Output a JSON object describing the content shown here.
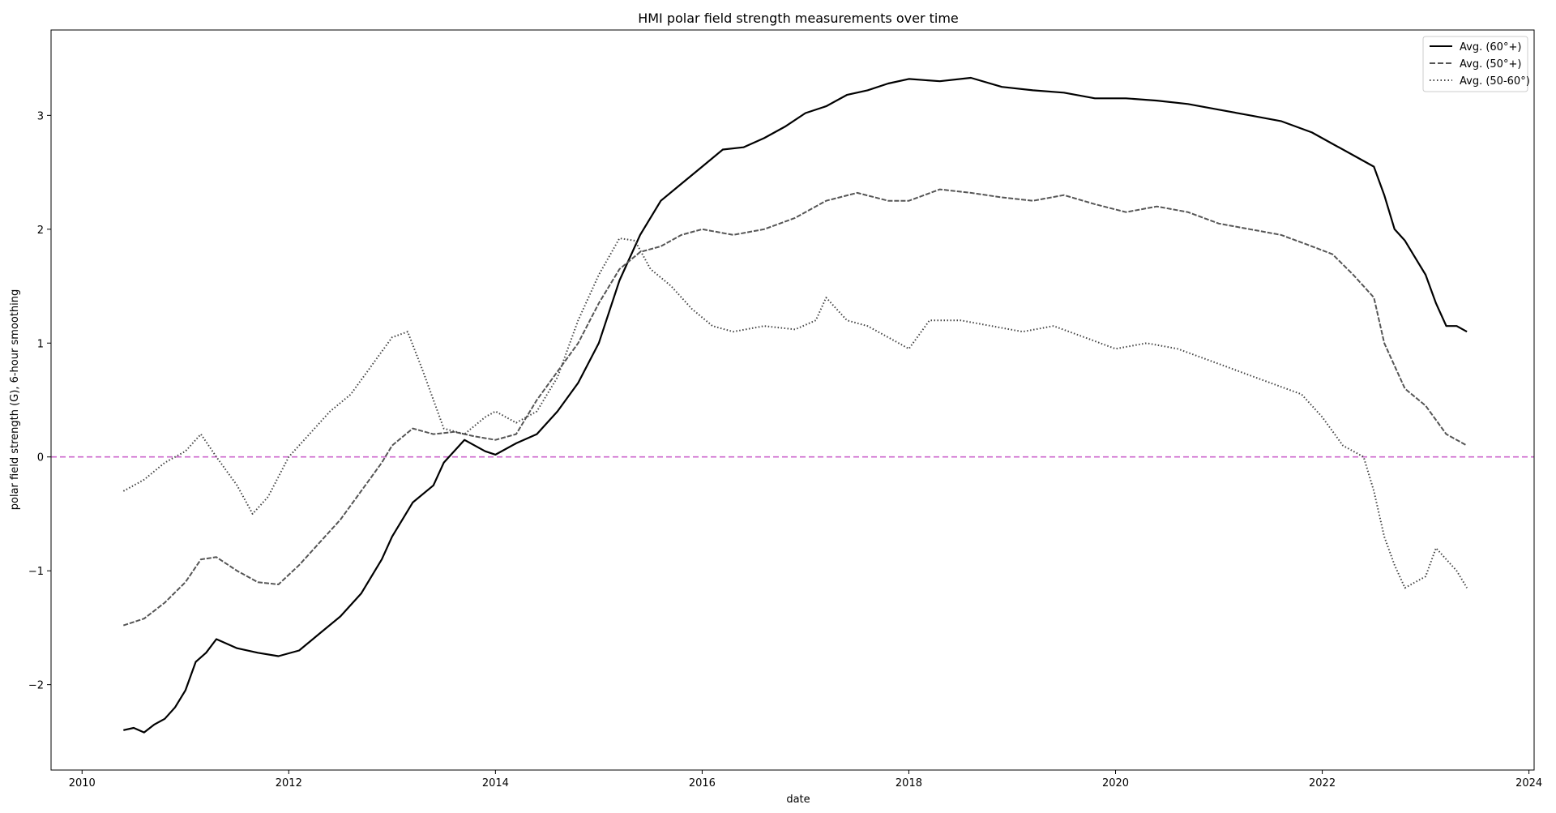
{
  "chart_data": {
    "type": "line",
    "title": "HMI polar field strength measurements over time",
    "xlabel": "date",
    "ylabel": "polar field strength (G), 6-hour smoothing",
    "xlim": [
      2009.7,
      2024.05
    ],
    "ylim": [
      -2.75,
      3.75
    ],
    "xticks": [
      2010,
      2012,
      2014,
      2016,
      2018,
      2020,
      2022,
      2024
    ],
    "xtick_labels": [
      "2010",
      "2012",
      "2014",
      "2016",
      "2018",
      "2020",
      "2022",
      "2024"
    ],
    "yticks": [
      -2,
      -1,
      0,
      1,
      2,
      3
    ],
    "ytick_labels": [
      "−2",
      "−1",
      "0",
      "1",
      "2",
      "3"
    ],
    "grid": false,
    "legend_position": "top-right",
    "reference_line": {
      "y": 0,
      "style": "dashed",
      "color": "#cc66cc"
    },
    "series": [
      {
        "name": "Avg. (60°+)",
        "style": "solid",
        "color": "#000000",
        "x": [
          2010.4,
          2010.5,
          2010.6,
          2010.7,
          2010.8,
          2010.9,
          2011.0,
          2011.1,
          2011.2,
          2011.3,
          2011.5,
          2011.7,
          2011.9,
          2012.1,
          2012.3,
          2012.5,
          2012.7,
          2012.9,
          2013.0,
          2013.2,
          2013.4,
          2013.5,
          2013.7,
          2013.9,
          2014.0,
          2014.2,
          2014.4,
          2014.6,
          2014.8,
          2015.0,
          2015.2,
          2015.4,
          2015.6,
          2015.8,
          2016.0,
          2016.2,
          2016.4,
          2016.6,
          2016.8,
          2017.0,
          2017.2,
          2017.4,
          2017.6,
          2017.8,
          2018.0,
          2018.3,
          2018.6,
          2018.9,
          2019.2,
          2019.5,
          2019.8,
          2020.1,
          2020.4,
          2020.7,
          2021.0,
          2021.3,
          2021.6,
          2021.9,
          2022.1,
          2022.3,
          2022.5,
          2022.6,
          2022.7,
          2022.8,
          2022.9,
          2023.0,
          2023.1,
          2023.2,
          2023.3,
          2023.4
        ],
        "y": [
          -2.4,
          -2.38,
          -2.42,
          -2.35,
          -2.3,
          -2.2,
          -2.05,
          -1.8,
          -1.72,
          -1.6,
          -1.68,
          -1.72,
          -1.75,
          -1.7,
          -1.55,
          -1.4,
          -1.2,
          -0.9,
          -0.7,
          -0.4,
          -0.25,
          -0.05,
          0.15,
          0.05,
          0.02,
          0.12,
          0.2,
          0.4,
          0.65,
          1.0,
          1.55,
          1.95,
          2.25,
          2.4,
          2.55,
          2.7,
          2.72,
          2.8,
          2.9,
          3.02,
          3.08,
          3.18,
          3.22,
          3.28,
          3.32,
          3.3,
          3.33,
          3.25,
          3.22,
          3.2,
          3.15,
          3.15,
          3.13,
          3.1,
          3.05,
          3.0,
          2.95,
          2.85,
          2.75,
          2.65,
          2.55,
          2.3,
          2.0,
          1.9,
          1.75,
          1.6,
          1.35,
          1.15,
          1.15,
          1.1
        ]
      },
      {
        "name": "Avg. (50°+)",
        "style": "dashed",
        "color": "#555555",
        "x": [
          2010.4,
          2010.6,
          2010.8,
          2011.0,
          2011.15,
          2011.3,
          2011.5,
          2011.7,
          2011.9,
          2012.1,
          2012.3,
          2012.5,
          2012.7,
          2012.9,
          2013.0,
          2013.2,
          2013.4,
          2013.6,
          2013.8,
          2014.0,
          2014.2,
          2014.4,
          2014.6,
          2014.8,
          2015.0,
          2015.2,
          2015.4,
          2015.6,
          2015.8,
          2016.0,
          2016.3,
          2016.6,
          2016.9,
          2017.2,
          2017.5,
          2017.8,
          2018.0,
          2018.3,
          2018.6,
          2018.9,
          2019.2,
          2019.5,
          2019.8,
          2020.1,
          2020.4,
          2020.7,
          2021.0,
          2021.3,
          2021.6,
          2021.9,
          2022.1,
          2022.3,
          2022.5,
          2022.6,
          2022.8,
          2023.0,
          2023.2,
          2023.4
        ],
        "y": [
          -1.48,
          -1.42,
          -1.28,
          -1.1,
          -0.9,
          -0.88,
          -1.0,
          -1.1,
          -1.12,
          -0.95,
          -0.75,
          -0.55,
          -0.3,
          -0.05,
          0.1,
          0.25,
          0.2,
          0.22,
          0.18,
          0.15,
          0.2,
          0.5,
          0.75,
          1.0,
          1.35,
          1.65,
          1.8,
          1.85,
          1.95,
          2.0,
          1.95,
          2.0,
          2.1,
          2.25,
          2.32,
          2.25,
          2.25,
          2.35,
          2.32,
          2.28,
          2.25,
          2.3,
          2.22,
          2.15,
          2.2,
          2.15,
          2.05,
          2.0,
          1.95,
          1.85,
          1.78,
          1.6,
          1.4,
          1.0,
          0.6,
          0.45,
          0.2,
          0.1
        ]
      },
      {
        "name": "Avg. (50-60°)",
        "style": "dotted",
        "color": "#444444",
        "x": [
          2010.4,
          2010.6,
          2010.8,
          2011.0,
          2011.15,
          2011.3,
          2011.5,
          2011.65,
          2011.8,
          2012.0,
          2012.2,
          2012.4,
          2012.6,
          2012.8,
          2013.0,
          2013.15,
          2013.3,
          2013.5,
          2013.7,
          2013.9,
          2014.0,
          2014.2,
          2014.4,
          2014.6,
          2014.8,
          2015.0,
          2015.2,
          2015.35,
          2015.5,
          2015.7,
          2015.9,
          2016.1,
          2016.3,
          2016.6,
          2016.9,
          2017.1,
          2017.2,
          2017.4,
          2017.6,
          2017.8,
          2018.0,
          2018.2,
          2018.5,
          2018.8,
          2019.1,
          2019.4,
          2019.7,
          2020.0,
          2020.3,
          2020.6,
          2020.9,
          2021.2,
          2021.5,
          2021.8,
          2022.0,
          2022.2,
          2022.4,
          2022.5,
          2022.6,
          2022.7,
          2022.8,
          2022.9,
          2023.0,
          2023.1,
          2023.2,
          2023.3,
          2023.4
        ],
        "y": [
          -0.3,
          -0.2,
          -0.05,
          0.05,
          0.2,
          0.0,
          -0.25,
          -0.5,
          -0.35,
          0.0,
          0.2,
          0.4,
          0.55,
          0.8,
          1.05,
          1.1,
          0.75,
          0.25,
          0.2,
          0.35,
          0.4,
          0.3,
          0.4,
          0.7,
          1.2,
          1.6,
          1.92,
          1.9,
          1.65,
          1.5,
          1.3,
          1.15,
          1.1,
          1.15,
          1.12,
          1.2,
          1.4,
          1.2,
          1.15,
          1.05,
          0.95,
          1.2,
          1.2,
          1.15,
          1.1,
          1.15,
          1.05,
          0.95,
          1.0,
          0.95,
          0.85,
          0.75,
          0.65,
          0.55,
          0.35,
          0.1,
          0.0,
          -0.3,
          -0.7,
          -0.95,
          -1.15,
          -1.1,
          -1.05,
          -0.8,
          -0.9,
          -1.0,
          -1.15
        ]
      }
    ]
  }
}
